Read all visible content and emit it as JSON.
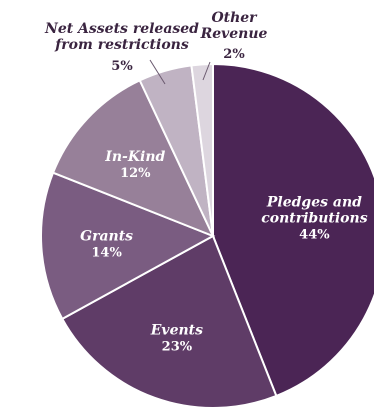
{
  "chart_data": {
    "type": "pie",
    "title": "",
    "slices": [
      {
        "name_lines": [
          "Pledges and",
          "contributions"
        ],
        "pct_label": "44%",
        "value": 44,
        "color": "#4b2555",
        "label_color": "#ffffff"
      },
      {
        "name_lines": [
          "Events"
        ],
        "pct_label": "23%",
        "value": 23,
        "color": "#5f3c67",
        "label_color": "#ffffff"
      },
      {
        "name_lines": [
          "Grants"
        ],
        "pct_label": "14%",
        "value": 14,
        "color": "#7a5c81",
        "label_color": "#ffffff"
      },
      {
        "name_lines": [
          "In-Kind"
        ],
        "pct_label": "12%",
        "value": 12,
        "color": "#978099",
        "label_color": "#ffffff"
      },
      {
        "name_lines": [
          "Net Assets released",
          "from restrictions"
        ],
        "pct_label": "5%",
        "value": 5,
        "color": "#c0b3c3",
        "label_color": "#3a2440",
        "outside": true
      },
      {
        "name_lines": [
          "Other",
          "Revenue"
        ],
        "pct_label": "2%",
        "value": 2,
        "color": "#ddd6df",
        "label_color": "#3a2440",
        "outside": true
      }
    ]
  }
}
